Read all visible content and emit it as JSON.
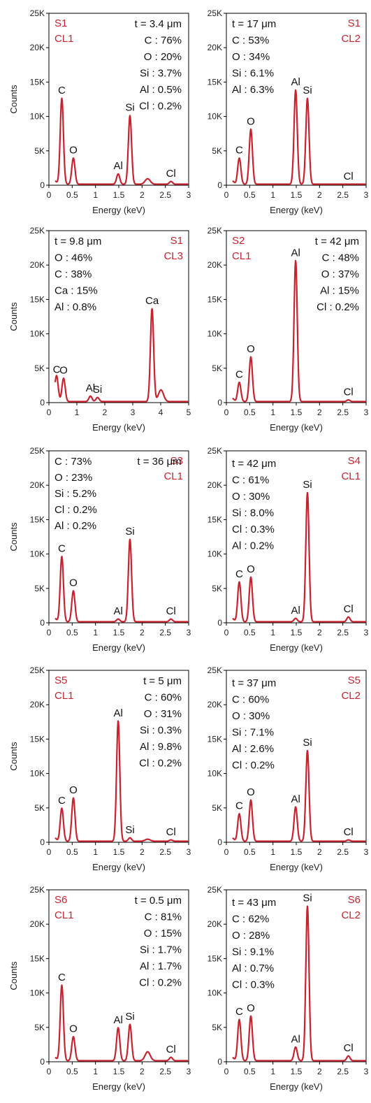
{
  "chart_data": [
    {
      "type": "line",
      "sample": "S1",
      "cluster": "CL1",
      "thickness": "t = 3.4 μm",
      "composition": [
        "C : 76%",
        "O : 20%",
        "Si : 3.7%",
        "Al : 0.5%",
        "Cl : 0.2%"
      ],
      "xlabel": "Energy (keV)",
      "ylabel": "Counts",
      "xlim": [
        0,
        3
      ],
      "ylim": [
        0,
        25000
      ],
      "xticks": [
        "0",
        "0.5",
        "1",
        "1.5",
        "2",
        "2.5",
        "3"
      ],
      "yticks": [
        "0",
        "5K",
        "10K",
        "15K",
        "20K",
        "25K"
      ],
      "peaks": [
        {
          "label": "C",
          "x": 0.277,
          "y": 12500
        },
        {
          "label": "O",
          "x": 0.525,
          "y": 3800
        },
        {
          "label": "Al",
          "x": 1.487,
          "y": 1500
        },
        {
          "label": "Si",
          "x": 1.74,
          "y": 10000
        },
        {
          "label": "",
          "x": 2.12,
          "y": 800
        },
        {
          "label": "Cl",
          "x": 2.62,
          "y": 400
        }
      ]
    },
    {
      "type": "line",
      "sample": "S1",
      "cluster": "CL2",
      "thickness": "t = 17 μm",
      "composition": [
        "C : 53%",
        "O : 34%",
        "Si : 6.1%",
        "Al : 6.3%"
      ],
      "xlabel": "Energy (keV)",
      "ylabel": "",
      "xlim": [
        0,
        3
      ],
      "ylim": [
        0,
        25000
      ],
      "xticks": [
        "0",
        "0.5",
        "1",
        "1.5",
        "2",
        "2.5",
        "3"
      ],
      "yticks": [
        "0",
        "5K",
        "10K",
        "15K",
        "20K",
        "25K"
      ],
      "peaks": [
        {
          "label": "C",
          "x": 0.277,
          "y": 3800
        },
        {
          "label": "O",
          "x": 0.525,
          "y": 8000
        },
        {
          "label": "Al",
          "x": 1.487,
          "y": 13700
        },
        {
          "label": "Si",
          "x": 1.74,
          "y": 12500
        },
        {
          "label": "Cl",
          "x": 2.62,
          "y": 0
        }
      ]
    },
    {
      "type": "line",
      "sample": "S1",
      "cluster": "CL3",
      "thickness": "t = 9.8 μm",
      "composition": [
        "O : 46%",
        "C : 38%",
        "Ca : 15%",
        "Al  : 0.8%"
      ],
      "xlabel": "Energy (keV)",
      "ylabel": "Counts",
      "xlim": [
        0,
        5
      ],
      "ylim": [
        0,
        25000
      ],
      "xticks": [
        "0",
        "1",
        "2",
        "3",
        "4",
        "5"
      ],
      "yticks": [
        "0",
        "5K",
        "10K",
        "15K",
        "20K",
        "25K"
      ],
      "peaks": [
        {
          "label": "C",
          "x": 0.277,
          "y": 3500
        },
        {
          "label": "O",
          "x": 0.525,
          "y": 3400
        },
        {
          "label": "Al",
          "x": 1.487,
          "y": 800
        },
        {
          "label": "Si",
          "x": 1.74,
          "y": 600
        },
        {
          "label": "Ca",
          "x": 3.69,
          "y": 13500
        },
        {
          "label": "",
          "x": 4.01,
          "y": 1700
        }
      ]
    },
    {
      "type": "line",
      "sample": "S2",
      "cluster": "CL1",
      "thickness": "t = 42 μm",
      "composition": [
        "C : 48%",
        "O : 37%",
        "Al : 15%",
        "Cl : 0.2%"
      ],
      "xlabel": "Energy (keV)",
      "ylabel": "",
      "xlim": [
        0,
        3
      ],
      "ylim": [
        0,
        25000
      ],
      "xticks": [
        "0",
        "0.5",
        "1",
        "1.5",
        "2",
        "2.5",
        "3"
      ],
      "yticks": [
        "0",
        "5K",
        "10K",
        "15K",
        "20K",
        "25K"
      ],
      "peaks": [
        {
          "label": "C",
          "x": 0.277,
          "y": 2800
        },
        {
          "label": "O",
          "x": 0.525,
          "y": 6500
        },
        {
          "label": "Al",
          "x": 1.487,
          "y": 20500
        },
        {
          "label": "Cl",
          "x": 2.62,
          "y": 250
        }
      ]
    },
    {
      "type": "line",
      "sample": "S3",
      "cluster": "CL1",
      "thickness": "t = 36 μm",
      "composition": [
        "C : 73%",
        "O : 23%",
        "Si : 5.2%",
        "Cl : 0.2%",
        "Al : 0.2%"
      ],
      "xlabel": "Energy (keV)",
      "ylabel": "Counts",
      "xlim": [
        0,
        3
      ],
      "ylim": [
        0,
        25000
      ],
      "xticks": [
        "0",
        "0.5",
        "1",
        "1.5",
        "2",
        "2.5",
        "3"
      ],
      "yticks": [
        "0",
        "5K",
        "10K",
        "15K",
        "20K",
        "25K"
      ],
      "peaks": [
        {
          "label": "C",
          "x": 0.277,
          "y": 9500
        },
        {
          "label": "O",
          "x": 0.525,
          "y": 4500
        },
        {
          "label": "Al",
          "x": 1.487,
          "y": 400
        },
        {
          "label": "Si",
          "x": 1.74,
          "y": 12000
        },
        {
          "label": "Cl",
          "x": 2.62,
          "y": 400
        }
      ]
    },
    {
      "type": "line",
      "sample": "S4",
      "cluster": "CL1",
      "thickness": "t = 42 μm",
      "composition": [
        "C : 61%",
        "O : 30%",
        "Si : 8.0%",
        "Cl : 0.3%",
        "Al : 0.2%"
      ],
      "xlabel": "Energy (keV)",
      "ylabel": "",
      "xlim": [
        0,
        3
      ],
      "ylim": [
        0,
        25000
      ],
      "xticks": [
        "0",
        "0.5",
        "1",
        "1.5",
        "2",
        "2.5",
        "3"
      ],
      "yticks": [
        "0",
        "5K",
        "10K",
        "15K",
        "20K",
        "25K"
      ],
      "peaks": [
        {
          "label": "C",
          "x": 0.277,
          "y": 5800
        },
        {
          "label": "O",
          "x": 0.525,
          "y": 6500
        },
        {
          "label": "Al",
          "x": 1.487,
          "y": 500
        },
        {
          "label": "Si",
          "x": 1.74,
          "y": 18800
        },
        {
          "label": "Cl",
          "x": 2.62,
          "y": 700
        }
      ]
    },
    {
      "type": "line",
      "sample": "S5",
      "cluster": "CL1",
      "thickness": "t = 5 μm",
      "composition": [
        "C : 60%",
        "O : 31%",
        "Si : 0.3%",
        "Al : 9.8%",
        "Cl : 0.2%"
      ],
      "xlabel": "Energy (keV)",
      "ylabel": "Counts",
      "xlim": [
        0,
        3
      ],
      "ylim": [
        0,
        25000
      ],
      "xticks": [
        "0",
        "0.5",
        "1",
        "1.5",
        "2",
        "2.5",
        "3"
      ],
      "yticks": [
        "0",
        "5K",
        "10K",
        "15K",
        "20K",
        "25K"
      ],
      "peaks": [
        {
          "label": "C",
          "x": 0.277,
          "y": 4800
        },
        {
          "label": "O",
          "x": 0.525,
          "y": 6300
        },
        {
          "label": "Al",
          "x": 1.487,
          "y": 17500
        },
        {
          "label": "Si",
          "x": 1.74,
          "y": 500
        },
        {
          "label": "",
          "x": 2.12,
          "y": 300
        },
        {
          "label": "Cl",
          "x": 2.62,
          "y": 200
        }
      ]
    },
    {
      "type": "line",
      "sample": "S5",
      "cluster": "CL2",
      "thickness": "t = 37 μm",
      "composition": [
        "C : 60%",
        "O : 30%",
        "Si : 7.1%",
        "Al : 2.6%",
        "Cl : 0.2%"
      ],
      "xlabel": "Energy (keV)",
      "ylabel": "",
      "xlim": [
        0,
        3
      ],
      "ylim": [
        0,
        25000
      ],
      "xticks": [
        "0",
        "0.5",
        "1",
        "1.5",
        "2",
        "2.5",
        "3"
      ],
      "yticks": [
        "0",
        "5K",
        "10K",
        "15K",
        "20K",
        "25K"
      ],
      "peaks": [
        {
          "label": "C",
          "x": 0.277,
          "y": 4000
        },
        {
          "label": "O",
          "x": 0.525,
          "y": 6000
        },
        {
          "label": "Al",
          "x": 1.487,
          "y": 5000
        },
        {
          "label": "Si",
          "x": 1.74,
          "y": 13200
        },
        {
          "label": "Cl",
          "x": 2.62,
          "y": 200
        }
      ]
    },
    {
      "type": "line",
      "sample": "S6",
      "cluster": "CL1",
      "thickness": "t = 0.5 μm",
      "composition": [
        "C : 81%",
        "O : 15%",
        "Si : 1.7%",
        "Al : 1.7%",
        "Cl : 0.2%"
      ],
      "xlabel": "Energy (keV)",
      "ylabel": "Counts",
      "xlim": [
        0,
        3
      ],
      "ylim": [
        0,
        25000
      ],
      "xticks": [
        "0",
        "0.5",
        "1",
        "1.5",
        "2",
        "2.5",
        "3"
      ],
      "yticks": [
        "0",
        "5K",
        "10K",
        "15K",
        "20K",
        "25K"
      ],
      "peaks": [
        {
          "label": "C",
          "x": 0.277,
          "y": 11000
        },
        {
          "label": "O",
          "x": 0.525,
          "y": 3500
        },
        {
          "label": "Al",
          "x": 1.487,
          "y": 4800
        },
        {
          "label": "Si",
          "x": 1.74,
          "y": 5300
        },
        {
          "label": "",
          "x": 2.12,
          "y": 1300
        },
        {
          "label": "Cl",
          "x": 2.62,
          "y": 500
        }
      ]
    },
    {
      "type": "line",
      "sample": "S6",
      "cluster": "CL2",
      "thickness": "t = 43 μm",
      "composition": [
        "C : 62%",
        "O : 28%",
        "Si : 9.1%",
        "Al : 0.7%",
        "Cl : 0.3%"
      ],
      "xlabel": "Energy (keV)",
      "ylabel": "",
      "xlim": [
        0,
        3
      ],
      "ylim": [
        0,
        25000
      ],
      "xticks": [
        "0",
        "0.5",
        "1",
        "1.5",
        "2",
        "2.5",
        "3"
      ],
      "yticks": [
        "0",
        "5K",
        "10K",
        "15K",
        "20K",
        "25K"
      ],
      "peaks": [
        {
          "label": "C",
          "x": 0.277,
          "y": 6000
        },
        {
          "label": "O",
          "x": 0.525,
          "y": 6500
        },
        {
          "label": "Al",
          "x": 1.487,
          "y": 2000
        },
        {
          "label": "Si",
          "x": 1.74,
          "y": 22500
        },
        {
          "label": "Cl",
          "x": 2.62,
          "y": 700
        }
      ]
    }
  ],
  "colors": {
    "line": "#c8242f",
    "tag": "#c8242f",
    "text": "#111111"
  }
}
